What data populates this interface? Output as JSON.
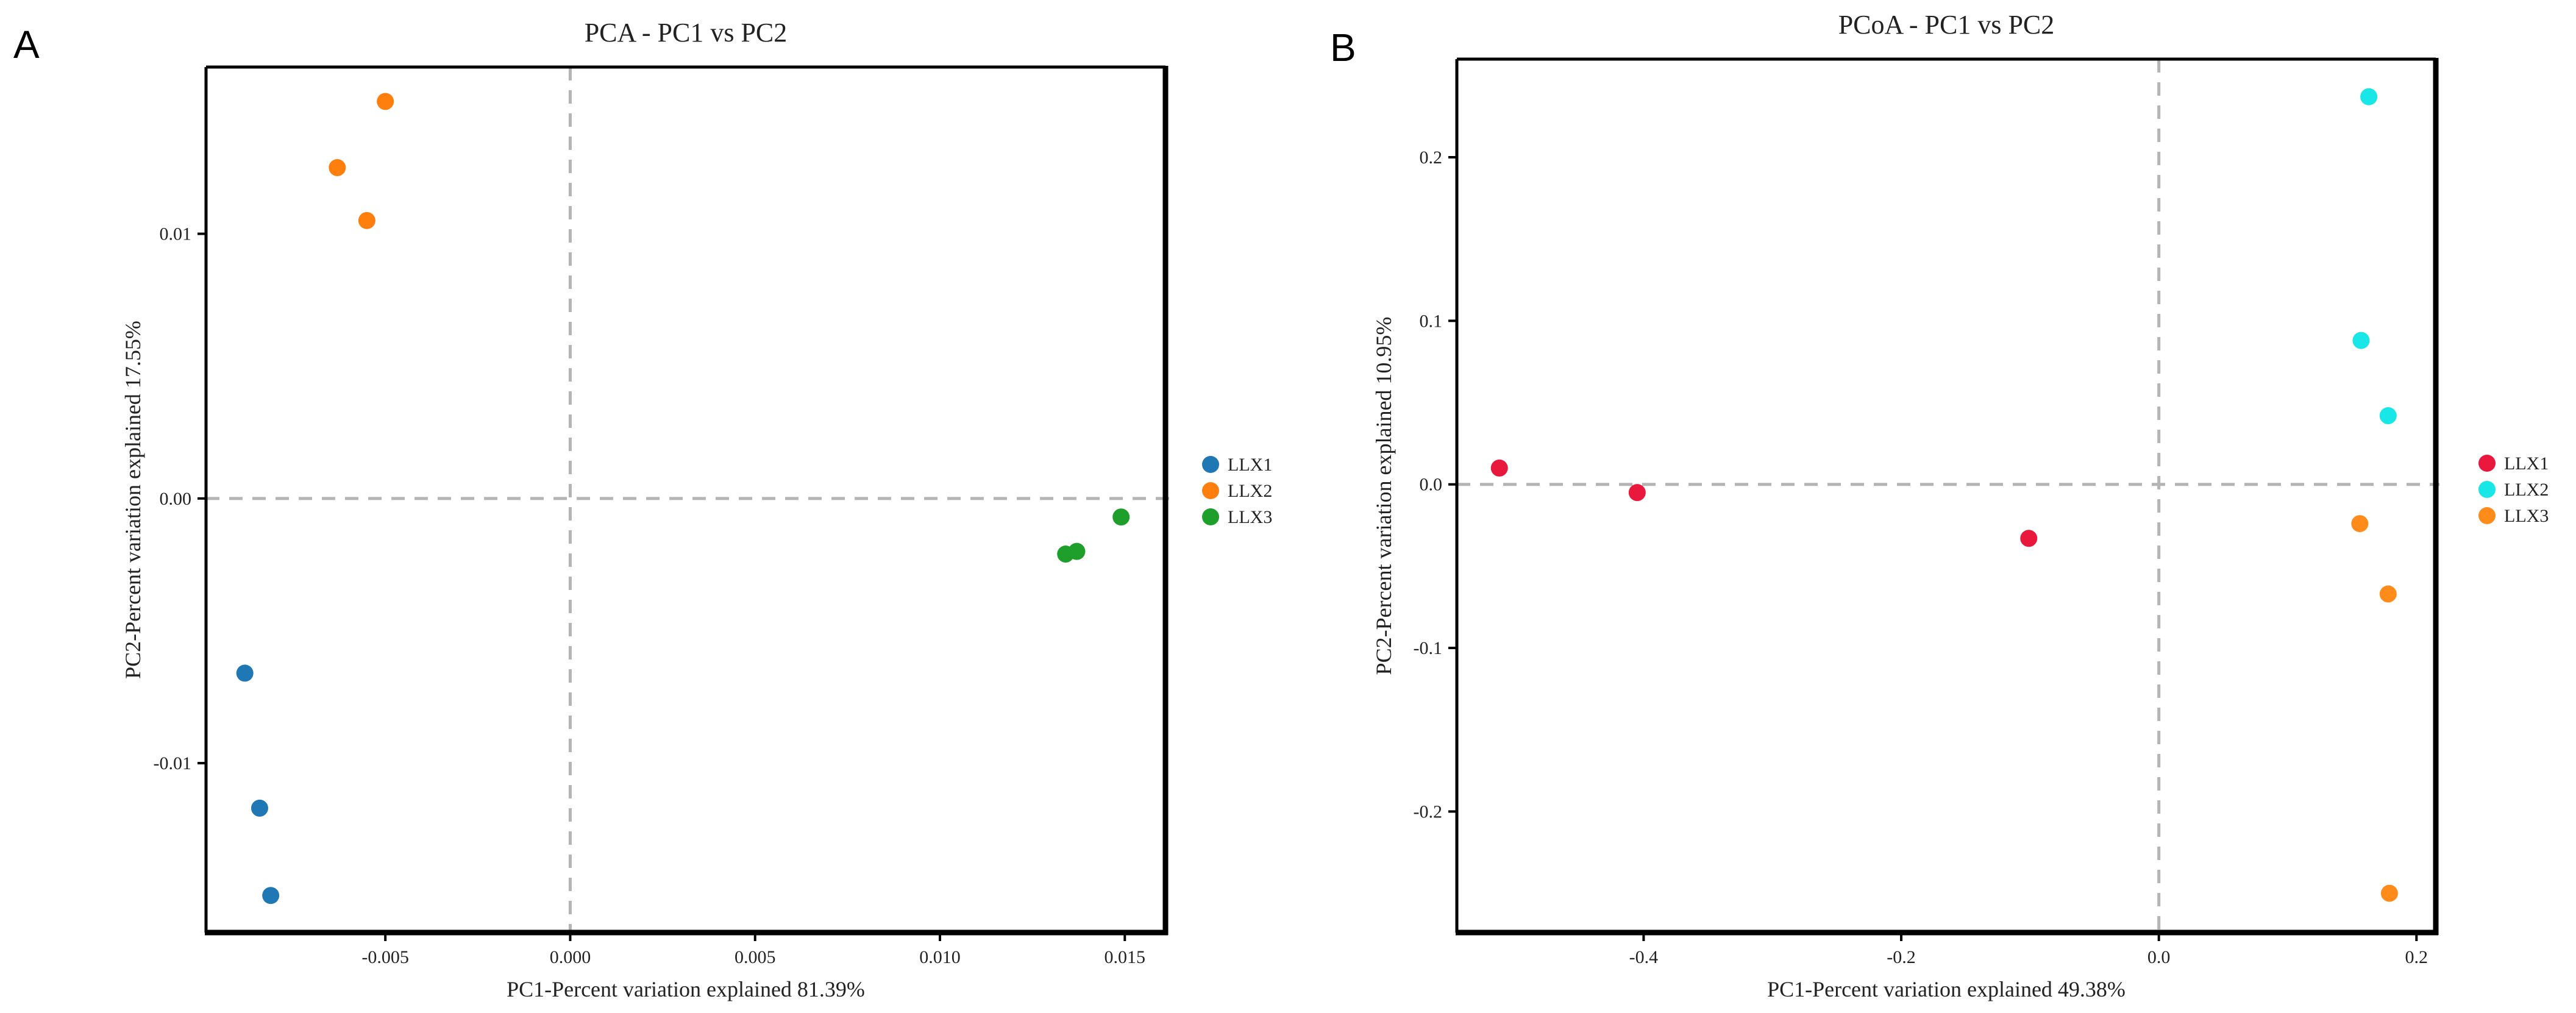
{
  "chart_data": [
    {
      "panel": "A",
      "type": "scatter",
      "title": "PCA - PC1 vs PC2",
      "xlabel": "PC1-Percent variation explained 81.39%",
      "ylabel": "PC2-Percent variation explained 17.55%",
      "xlim": [
        -0.00985,
        0.0161
      ],
      "ylim": [
        -0.0164,
        0.0163
      ],
      "xticks": [
        -0.005,
        0.0,
        0.005,
        0.01,
        0.015
      ],
      "xtick_labels": [
        "-0.005",
        "0.000",
        "0.005",
        "0.010",
        "0.015"
      ],
      "yticks": [
        -0.01,
        0.0,
        0.01
      ],
      "ytick_labels": [
        "-0.01",
        "0.00",
        "0.01"
      ],
      "reference_lines": {
        "x": 0,
        "y": 0
      },
      "legend_position": "right",
      "series": [
        {
          "name": "LLX1",
          "color": "#1f77b4",
          "points": [
            [
              -0.0088,
              -0.0066
            ],
            [
              -0.0084,
              -0.0117
            ],
            [
              -0.0081,
              -0.015
            ]
          ]
        },
        {
          "name": "LLX2",
          "color": "#ff7f0e",
          "points": [
            [
              -0.0063,
              0.0125
            ],
            [
              -0.0055,
              0.0105
            ],
            [
              -0.005,
              0.015
            ]
          ]
        },
        {
          "name": "LLX3",
          "color": "#1e9e2a",
          "points": [
            [
              0.0134,
              -0.0021
            ],
            [
              0.0137,
              -0.002
            ],
            [
              0.0149,
              -0.0007
            ]
          ]
        }
      ]
    },
    {
      "panel": "B",
      "type": "scatter",
      "title": "PCoA - PC1 vs PC2",
      "xlabel": "PC1-Percent variation explained 49.38%",
      "ylabel": "PC2-Percent variation explained 10.95%",
      "xlim": [
        -0.545,
        0.215
      ],
      "ylim": [
        -0.274,
        0.26
      ],
      "xticks": [
        -0.4,
        -0.2,
        0.0,
        0.2
      ],
      "xtick_labels": [
        "-0.4",
        "-0.2",
        "0.0",
        "0.2"
      ],
      "yticks": [
        -0.2,
        -0.1,
        0.0,
        0.1,
        0.2
      ],
      "ytick_labels": [
        "-0.2",
        "-0.1",
        "0.0",
        "0.1",
        "0.2"
      ],
      "reference_lines": {
        "x": 0,
        "y": 0
      },
      "legend_position": "right",
      "series": [
        {
          "name": "LLX1",
          "color": "#e8193c",
          "points": [
            [
              -0.512,
              0.01
            ],
            [
              -0.405,
              -0.005
            ],
            [
              -0.101,
              -0.033
            ]
          ]
        },
        {
          "name": "LLX2",
          "color": "#19e6e6",
          "points": [
            [
              0.163,
              0.237
            ],
            [
              0.157,
              0.088
            ],
            [
              0.178,
              0.042
            ]
          ]
        },
        {
          "name": "LLX3",
          "color": "#ff8c1a",
          "points": [
            [
              0.156,
              -0.024
            ],
            [
              0.178,
              -0.067
            ],
            [
              0.179,
              -0.25
            ]
          ]
        }
      ]
    }
  ]
}
